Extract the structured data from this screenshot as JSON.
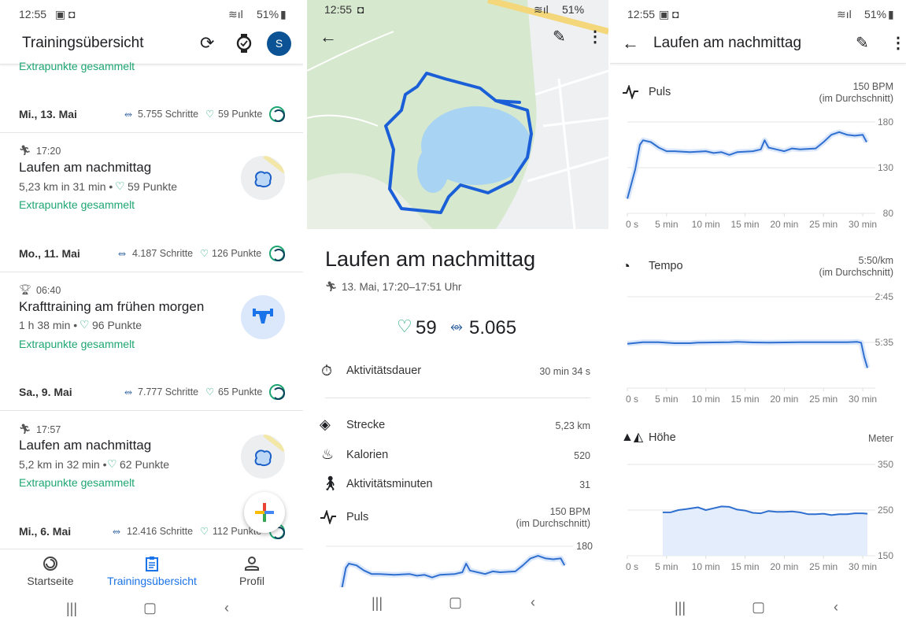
{
  "status_bar": {
    "time": "12:55",
    "battery": "51%"
  },
  "overview": {
    "title": "Trainingsübersicht",
    "avatar_letter": "S",
    "partial_extra": "Extrapunkte gesammelt",
    "days": [
      {
        "date": "Mi., 13. Mai",
        "steps": "5.755 Schritte",
        "points": "59 Punkte"
      },
      {
        "date": "Mo., 11. Mai",
        "steps": "4.187 Schritte",
        "points": "126 Punkte"
      },
      {
        "date": "Sa., 9. Mai",
        "steps": "7.777 Schritte",
        "points": "65 Punkte"
      },
      {
        "date": "Mi., 6. Mai",
        "steps": "12.416 Schritte",
        "points": "112 Punkte"
      }
    ],
    "activities": [
      {
        "time": "17:20",
        "title": "Laufen am nachmittag",
        "summary": "5,23 km in 31 min •",
        "points": "59 Punkte",
        "extra": "Extrapunkte gesammelt",
        "icon": "run-icon"
      },
      {
        "time": "06:40",
        "title": "Krafttraining am frühen morgen",
        "summary": "1 h 38 min •",
        "points": "96 Punkte",
        "extra": "Extrapunkte gesammelt",
        "icon": "weights-icon"
      },
      {
        "time": "17:57",
        "title": "Laufen am nachmittag",
        "summary": "5,2 km in 32 min •",
        "points": "62 Punkte",
        "extra": "Extrapunkte gesammelt",
        "icon": "run-icon"
      }
    ],
    "bottom_nav": [
      {
        "label": "Startseite",
        "icon": "home-ring-icon",
        "active": false
      },
      {
        "label": "Trainingsübersicht",
        "icon": "clipboard-icon",
        "active": true
      },
      {
        "label": "Profil",
        "icon": "person-icon",
        "active": false
      }
    ]
  },
  "detail": {
    "title": "Laufen am nachmittag",
    "datetime": "13. Mai, 17:20–17:51 Uhr",
    "heart_points": "59",
    "steps": "5.065",
    "rows": [
      {
        "label": "Aktivitätsdauer",
        "value": "30 min 34 s",
        "icon": "timer-icon"
      },
      {
        "label": "Strecke",
        "value": "5,23 km",
        "icon": "route-icon"
      },
      {
        "label": "Kalorien",
        "value": "520",
        "icon": "flame-icon"
      },
      {
        "label": "Aktivitätsminuten",
        "value": "31",
        "icon": "walk-icon"
      }
    ],
    "pulse": {
      "label": "Puls",
      "value": "150 BPM",
      "note": "(im Durchschnitt)",
      "top_tick": "180"
    }
  },
  "charts_page": {
    "title": "Laufen am nachmittag"
  },
  "chart_data": [
    {
      "type": "line",
      "title": "Puls",
      "value": "150 BPM",
      "note": "(im Durchschnitt)",
      "xlim": [
        0,
        31
      ],
      "ylim": [
        80,
        180
      ],
      "yticks": [
        "180",
        "130",
        "80"
      ],
      "xticks": [
        {
          "v": 0,
          "label": "0 s"
        },
        {
          "v": 5,
          "label": "5 min"
        },
        {
          "v": 10,
          "label": "10 min"
        },
        {
          "v": 15,
          "label": "15 min"
        },
        {
          "v": 20,
          "label": "20 min"
        },
        {
          "v": 25,
          "label": "25 min"
        },
        {
          "v": 30,
          "label": "30 min"
        }
      ],
      "points": [
        [
          0,
          96
        ],
        [
          0.5,
          112
        ],
        [
          1,
          128
        ],
        [
          1.6,
          155
        ],
        [
          2,
          160
        ],
        [
          3,
          158
        ],
        [
          4,
          152
        ],
        [
          5,
          148
        ],
        [
          6,
          148
        ],
        [
          8,
          147
        ],
        [
          10,
          148
        ],
        [
          11,
          146
        ],
        [
          12,
          147
        ],
        [
          13,
          144
        ],
        [
          14,
          147
        ],
        [
          16,
          148
        ],
        [
          17,
          150
        ],
        [
          17.5,
          160
        ],
        [
          18,
          152
        ],
        [
          19,
          150
        ],
        [
          20,
          148
        ],
        [
          21,
          151
        ],
        [
          22,
          150
        ],
        [
          24,
          151
        ],
        [
          25,
          158
        ],
        [
          26,
          166
        ],
        [
          27,
          169
        ],
        [
          28,
          166
        ],
        [
          29,
          165
        ],
        [
          30,
          166
        ],
        [
          30.5,
          158
        ]
      ]
    },
    {
      "type": "line",
      "title": "Tempo",
      "value": "5:50/km",
      "note": "(im Durchschnitt)",
      "xlim": [
        0,
        31
      ],
      "ylim": [
        "2:45",
        "8:25"
      ],
      "yticks": [
        "2:45",
        "5:35"
      ],
      "xticks": [
        {
          "v": 0,
          "label": "0 s"
        },
        {
          "v": 5,
          "label": "5 min"
        },
        {
          "v": 10,
          "label": "10 min"
        },
        {
          "v": 15,
          "label": "15 min"
        },
        {
          "v": 20,
          "label": "20 min"
        },
        {
          "v": 25,
          "label": "25 min"
        },
        {
          "v": 30,
          "label": "30 min"
        }
      ],
      "points": [
        [
          0,
          "5:40"
        ],
        [
          1,
          "5:37"
        ],
        [
          2,
          "5:34"
        ],
        [
          4,
          "5:34"
        ],
        [
          6,
          "5:38"
        ],
        [
          8,
          "5:38"
        ],
        [
          9,
          "5:36"
        ],
        [
          11,
          "5:35"
        ],
        [
          13,
          "5:34"
        ],
        [
          14,
          "5:33"
        ],
        [
          16,
          "5:35"
        ],
        [
          18,
          "5:36"
        ],
        [
          20,
          "5:35"
        ],
        [
          22,
          "5:34"
        ],
        [
          24,
          "5:34"
        ],
        [
          26,
          "5:34"
        ],
        [
          28,
          "5:34"
        ],
        [
          29.3,
          "5:33"
        ],
        [
          29.8,
          "5:36"
        ],
        [
          30.2,
          "6:30"
        ],
        [
          30.6,
          "7:10"
        ]
      ]
    },
    {
      "type": "area",
      "title": "Höhe",
      "unit": "Meter",
      "xlim": [
        0,
        31
      ],
      "ylim": [
        150,
        350
      ],
      "yticks": [
        "350",
        "250",
        "150"
      ],
      "xticks": [
        {
          "v": 0,
          "label": "0 s"
        },
        {
          "v": 5,
          "label": "5 min"
        },
        {
          "v": 10,
          "label": "10 min"
        },
        {
          "v": 15,
          "label": "15 min"
        },
        {
          "v": 20,
          "label": "20 min"
        },
        {
          "v": 25,
          "label": "25 min"
        },
        {
          "v": 30,
          "label": "30 min"
        }
      ],
      "points": [
        [
          4.5,
          245
        ],
        [
          5.5,
          245
        ],
        [
          6.5,
          250
        ],
        [
          7.5,
          252
        ],
        [
          9,
          256
        ],
        [
          10,
          250
        ],
        [
          11,
          254
        ],
        [
          12,
          258
        ],
        [
          13,
          257
        ],
        [
          14,
          251
        ],
        [
          15,
          249
        ],
        [
          16,
          244
        ],
        [
          17,
          243
        ],
        [
          18,
          248
        ],
        [
          19,
          246
        ],
        [
          20,
          246
        ],
        [
          21,
          247
        ],
        [
          22,
          245
        ],
        [
          23,
          241
        ],
        [
          24,
          241
        ],
        [
          25,
          242
        ],
        [
          26,
          239
        ],
        [
          27,
          241
        ],
        [
          28,
          241
        ],
        [
          29,
          243
        ],
        [
          30,
          243
        ],
        [
          30.6,
          242
        ]
      ]
    }
  ]
}
